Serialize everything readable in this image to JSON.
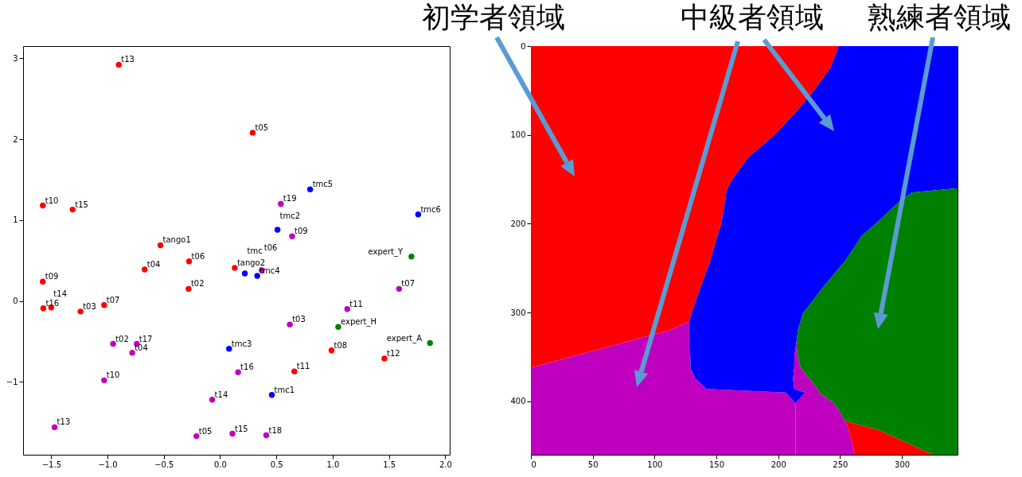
{
  "chart_data": [
    {
      "type": "scatter",
      "marker": "circle",
      "grid": false,
      "xlim": [
        -1.75,
        2.04
      ],
      "ylim": [
        -1.9,
        3.15
      ],
      "xticks": [
        {
          "value": -1.5,
          "label": "−1.5"
        },
        {
          "value": -1.0,
          "label": "−1.0"
        },
        {
          "value": -0.5,
          "label": "−0.5"
        },
        {
          "value": 0,
          "label": "0.0"
        },
        0.5,
        {
          "value": 1.0,
          "label": "1.0"
        },
        1.5,
        {
          "value": 2.0,
          "label": "2.0"
        }
      ],
      "yticks": [
        {
          "value": -1,
          "label": "−1"
        },
        0,
        1,
        2,
        3
      ],
      "series": [
        {
          "color": "#ff0000",
          "x": [
            -0.9,
            -1.575,
            -1.31,
            -0.53,
            -0.275,
            -0.67,
            -1.575,
            -0.28,
            -1.03,
            -1.57,
            -1.5,
            -1.24,
            0.29,
            0.13,
            0.99,
            0.66,
            1.46
          ],
          "values": [
            2.92,
            1.18,
            1.13,
            0.69,
            0.49,
            0.39,
            0.24,
            0.15,
            -0.05,
            -0.09,
            -0.08,
            -0.13,
            2.08,
            0.41,
            -0.61,
            -0.87,
            -0.71
          ]
        },
        {
          "color": "#bf00bf",
          "x": [
            -0.95,
            -0.74,
            -0.78,
            -1.03,
            -0.07,
            -1.47,
            -0.21,
            0.11,
            0.16,
            0.37,
            0.54,
            0.64,
            1.59,
            1.13,
            0.62,
            0.41
          ],
          "values": [
            -0.53,
            -0.53,
            -0.64,
            -0.98,
            -1.22,
            -1.56,
            -1.67,
            -1.64,
            -0.88,
            0.38,
            1.2,
            0.8,
            0.15,
            -0.1,
            -0.29,
            -1.66
          ]
        },
        {
          "color": "#0000ff",
          "x": [
            0.08,
            0.8,
            1.76,
            0.51,
            0.22,
            0.33,
            0.46
          ],
          "values": [
            -0.59,
            1.38,
            1.07,
            0.88,
            0.34,
            0.31,
            -1.16
          ]
        },
        {
          "color": "#008000",
          "x": [
            1.7,
            1.05,
            1.865
          ],
          "values": [
            0.55,
            -0.32,
            -0.52
          ]
        }
      ],
      "annotations": [
        {
          "text": "t13",
          "x": -0.9,
          "y": 2.92
        },
        {
          "text": "t10",
          "x": -1.575,
          "y": 1.18
        },
        {
          "text": "t15",
          "x": -1.31,
          "y": 1.13
        },
        {
          "text": "tango1",
          "x": -0.53,
          "y": 0.69
        },
        {
          "text": "t06",
          "x": -0.275,
          "y": 0.49
        },
        {
          "text": "t04",
          "x": -0.67,
          "y": 0.39
        },
        {
          "text": "t09",
          "x": -1.575,
          "y": 0.24
        },
        {
          "text": "t02",
          "x": -0.28,
          "y": 0.15
        },
        {
          "text": "t07",
          "x": -1.03,
          "y": -0.05
        },
        {
          "text": "t16",
          "x": -1.57,
          "y": -0.09
        },
        {
          "text": "t14",
          "x": -1.5,
          "y": -0.08
        },
        {
          "text": "t03",
          "x": -1.24,
          "y": -0.13
        },
        {
          "text": "t05",
          "x": 0.29,
          "y": 2.08
        },
        {
          "text": "tango2",
          "x": 0.13,
          "y": 0.41
        },
        {
          "text": "t08",
          "x": 0.99,
          "y": -0.61
        },
        {
          "text": "t11",
          "x": 0.66,
          "y": -0.87
        },
        {
          "text": "t12",
          "x": 1.46,
          "y": -0.71
        },
        {
          "text": "t02",
          "x": -0.95,
          "y": -0.53
        },
        {
          "text": "t17",
          "x": -0.74,
          "y": -0.53
        },
        {
          "text": "t04",
          "x": -0.78,
          "y": -0.64
        },
        {
          "text": "t10",
          "x": -1.03,
          "y": -0.98
        },
        {
          "text": "t14",
          "x": -0.07,
          "y": -1.22
        },
        {
          "text": "t13",
          "x": -1.47,
          "y": -1.56
        },
        {
          "text": "t05",
          "x": -0.21,
          "y": -1.67
        },
        {
          "text": "t15",
          "x": 0.11,
          "y": -1.64
        },
        {
          "text": "t16",
          "x": 0.16,
          "y": -0.88
        },
        {
          "text": "t06",
          "x": 0.37,
          "y": 0.38
        },
        {
          "text": "t19",
          "x": 0.54,
          "y": 1.2
        },
        {
          "text": "t09",
          "x": 0.64,
          "y": 0.8
        },
        {
          "text": "t07",
          "x": 1.59,
          "y": 0.15
        },
        {
          "text": "t11",
          "x": 1.13,
          "y": -0.1
        },
        {
          "text": "t03",
          "x": 0.62,
          "y": -0.29
        },
        {
          "text": "t18",
          "x": 0.41,
          "y": -1.66
        },
        {
          "text": "tmc3",
          "x": 0.08,
          "y": -0.59
        },
        {
          "text": "tmc5",
          "x": 0.8,
          "y": 1.38
        },
        {
          "text": "tmc6",
          "x": 1.76,
          "y": 1.07
        },
        {
          "text": "tmc2",
          "x": 0.51,
          "y": 0.88
        },
        {
          "text": "tmc",
          "x": 0.22,
          "y": 0.34
        },
        {
          "text": "tmc4",
          "x": 0.33,
          "y": 0.31
        },
        {
          "text": "tmc1",
          "x": 0.46,
          "y": -1.16
        },
        {
          "text": "expert_Y",
          "x": 1.7,
          "y": 0.55
        },
        {
          "text": "expert_H",
          "x": 1.05,
          "y": -0.32
        },
        {
          "text": "expert_A",
          "x": 1.865,
          "y": -0.52
        }
      ]
    },
    {
      "type": "area",
      "stacked": true,
      "orientation": "horizontal",
      "grid": false,
      "xlim": [
        0,
        345
      ],
      "ylim": [
        460,
        0
      ],
      "xticks": [
        0,
        50,
        100,
        150,
        200,
        250,
        300
      ],
      "yticks": [
        0,
        100,
        200,
        300,
        400
      ],
      "x": [
        0,
        25,
        50,
        75,
        100,
        125,
        150,
        160,
        165,
        175,
        200,
        213,
        242,
        272,
        301,
        310,
        320,
        330,
        340,
        350,
        362,
        374,
        386,
        390,
        402,
        412,
        422,
        432,
        447,
        460
      ],
      "series": [
        {
          "color": "#ff0000",
          "values": [
            249,
            242,
            229,
            214,
            197,
            176,
            163,
            159,
            158,
            157,
            154,
            151,
            145,
            137,
            130,
            128,
            112,
            85,
            59,
            32,
            0,
            null,
            null,
            null,
            null,
            null,
            null,
            null,
            null,
            null
          ]
        },
        {
          "color": "#bf00bf",
          "values": [
            null,
            null,
            null,
            null,
            null,
            null,
            null,
            null,
            null,
            null,
            null,
            null,
            null,
            null,
            null,
            0,
            16,
            43,
            69,
            97,
            129,
            133,
            142,
            206,
            214,
            214,
            214,
            214,
            214,
            214
          ]
        },
        {
          "color": "#0000ff",
          "values": [
            96,
            103,
            116,
            131,
            148,
            169,
            182,
            186,
            150,
            141,
            125,
            117,
            109,
            99,
            90,
            90,
            88,
            87,
            86,
            84,
            84,
            79,
            71,
            16,
            0,
            null,
            null,
            null,
            null,
            null
          ]
        },
        {
          "color": "#bf00bf",
          "values": [
            null,
            null,
            null,
            null,
            null,
            null,
            null,
            null,
            null,
            null,
            null,
            null,
            null,
            null,
            null,
            null,
            null,
            0,
            1,
            3,
            5,
            13,
            19,
            11,
            31,
            36,
            40,
            43,
            46,
            48
          ]
        },
        {
          "color": "#ff0000",
          "values": [
            null,
            null,
            null,
            null,
            null,
            null,
            null,
            null,
            null,
            null,
            null,
            null,
            null,
            null,
            null,
            null,
            null,
            null,
            null,
            null,
            null,
            null,
            null,
            null,
            null,
            null,
            0,
            24,
            45,
            63
          ]
        },
        {
          "color": "#008000",
          "values": [
            null,
            null,
            null,
            null,
            null,
            null,
            null,
            0,
            37,
            47,
            66,
            77,
            91,
            109,
            125,
            127,
            129,
            130,
            130,
            129,
            127,
            120,
            113,
            112,
            100,
            95,
            91,
            64,
            40,
            20
          ]
        }
      ],
      "annotations": [
        "初学者領域",
        "中級者領域",
        "熟練者領域"
      ]
    }
  ]
}
